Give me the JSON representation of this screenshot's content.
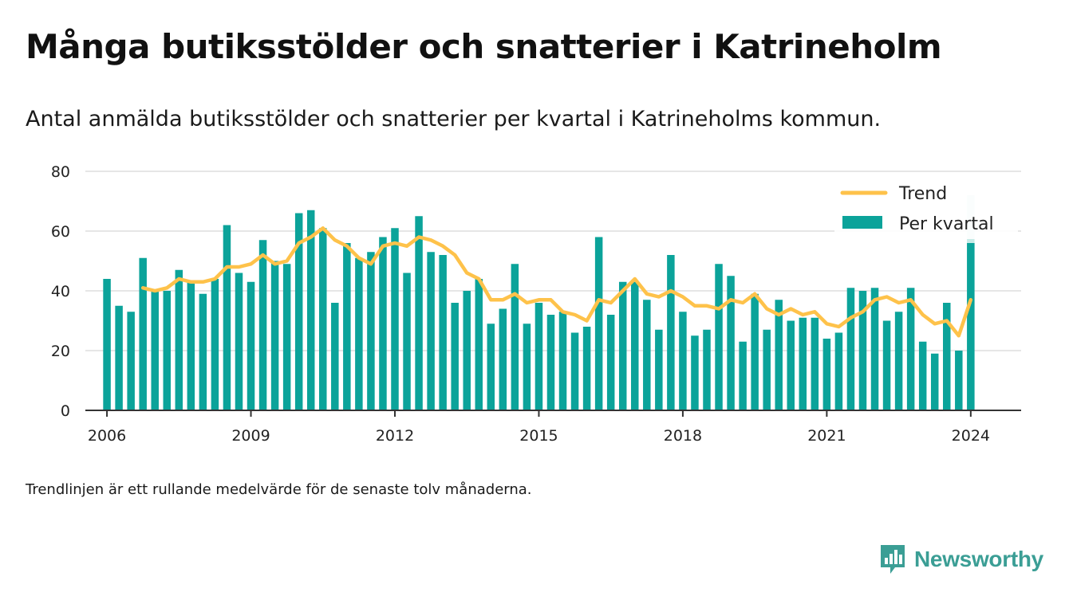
{
  "colors": {
    "bar": "#0ba39a",
    "bar_highlight": "#c7ebe7",
    "trend": "#fec24a",
    "grid": "#dddddd",
    "axis": "#333333",
    "brand": "#3b9e95"
  },
  "header": {
    "title": "Många butiksstölder och snatterier i Katrineholm",
    "subtitle": "Antal anmälda butiksstölder och snatterier per kvartal i Katrineholms kommun."
  },
  "footer": {
    "note": "Trendlinjen är ett rullande medelvärde för de senaste tolv månaderna.",
    "logo_text": "Newsworthy",
    "logo_icon": "bar-chart-speech-bubble-icon"
  },
  "chart_data": {
    "type": "bar",
    "ylim": [
      0,
      80
    ],
    "yticks": [
      0,
      20,
      40,
      60,
      80
    ],
    "xlim": [
      2005.55,
      2025.05
    ],
    "xticks": [
      2006,
      2009,
      2012,
      2015,
      2018,
      2021,
      2024
    ],
    "xtick_labels": [
      "2006",
      "2009",
      "2012",
      "2015",
      "2018",
      "2021",
      "2024"
    ],
    "grid": true,
    "legend_position": "top-right",
    "x": [
      2006.0,
      2006.25,
      2006.5,
      2006.75,
      2007.0,
      2007.25,
      2007.5,
      2007.75,
      2008.0,
      2008.25,
      2008.5,
      2008.75,
      2009.0,
      2009.25,
      2009.5,
      2009.75,
      2010.0,
      2010.25,
      2010.5,
      2010.75,
      2011.0,
      2011.25,
      2011.5,
      2011.75,
      2012.0,
      2012.25,
      2012.5,
      2012.75,
      2013.0,
      2013.25,
      2013.5,
      2013.75,
      2014.0,
      2014.25,
      2014.5,
      2014.75,
      2015.0,
      2015.25,
      2015.5,
      2015.75,
      2016.0,
      2016.25,
      2016.5,
      2016.75,
      2017.0,
      2017.25,
      2017.5,
      2017.75,
      2018.0,
      2018.25,
      2018.5,
      2018.75,
      2019.0,
      2019.25,
      2019.5,
      2019.75,
      2020.0,
      2020.25,
      2020.5,
      2020.75,
      2021.0,
      2021.25,
      2021.5,
      2021.75,
      2022.0,
      2022.25,
      2022.5,
      2022.75,
      2023.0,
      2023.25,
      2023.5,
      2023.75,
      2024.0
    ],
    "series": [
      {
        "name": "Per kvartal",
        "type": "bar",
        "values": [
          44,
          35,
          33,
          51,
          40,
          40,
          47,
          43,
          39,
          44,
          62,
          46,
          43,
          57,
          50,
          49,
          66,
          67,
          61,
          36,
          56,
          51,
          53,
          58,
          61,
          46,
          65,
          53,
          52,
          36,
          40,
          44,
          29,
          34,
          49,
          29,
          36,
          32,
          33,
          26,
          28,
          58,
          32,
          43,
          43,
          37,
          27,
          52,
          33,
          25,
          27,
          49,
          45,
          23,
          39,
          27,
          37,
          30,
          31,
          31,
          24,
          26,
          41,
          40,
          41,
          30,
          33,
          41,
          23,
          19,
          36,
          20,
          56
        ],
        "highlight_last": 72
      },
      {
        "name": "Trend",
        "type": "line",
        "values": [
          null,
          null,
          null,
          41,
          40,
          41,
          44,
          43,
          43,
          44,
          48,
          48,
          49,
          52,
          49,
          50,
          56,
          58,
          61,
          57,
          55,
          51,
          49,
          55,
          56,
          55,
          58,
          57,
          55,
          52,
          46,
          44,
          37,
          37,
          39,
          36,
          37,
          37,
          33,
          32,
          30,
          37,
          36,
          40,
          44,
          39,
          38,
          40,
          38,
          35,
          35,
          34,
          37,
          36,
          39,
          34,
          32,
          34,
          32,
          33,
          29,
          28,
          31,
          33,
          37,
          38,
          36,
          37,
          32,
          29,
          30,
          25,
          37
        ]
      }
    ]
  }
}
